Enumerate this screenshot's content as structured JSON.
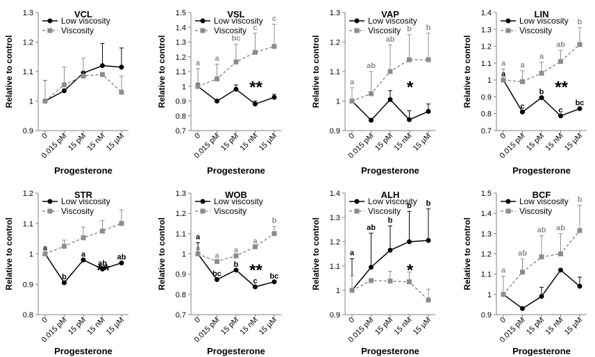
{
  "chart_data": [
    {
      "type": "line",
      "title": "VCL",
      "ylabel": "Relative to control",
      "xlabel": "Progesterone",
      "categories": [
        "0",
        "0.015 pM",
        "15 pM",
        "15 nM",
        "15 µM"
      ],
      "ylim": [
        0.9,
        1.3
      ],
      "yticks": [
        "0.9",
        "1",
        "1.1",
        "1.2",
        "1.3"
      ],
      "legend_position": "top-left",
      "significance": "",
      "series": [
        {
          "name": "Low viscosity",
          "style": "solid",
          "color": "#000000",
          "values": [
            1.0,
            1.035,
            1.095,
            1.12,
            1.115
          ],
          "errors": [
            0.07,
            0.0,
            0.0,
            0.075,
            0.065
          ],
          "letters": [
            "",
            "",
            "",
            "",
            ""
          ]
        },
        {
          "name": "Viscosity",
          "style": "dashed",
          "color": "#8c8c8c",
          "values": [
            1.0,
            1.055,
            1.085,
            1.09,
            1.03
          ],
          "errors": [
            0.07,
            0.06,
            0.06,
            0.0,
            0.055
          ],
          "letters": [
            "",
            "",
            "",
            "",
            ""
          ]
        }
      ]
    },
    {
      "type": "line",
      "title": "VSL",
      "ylabel": "Relative to control",
      "xlabel": "Progesterone",
      "categories": [
        "0",
        "0.015 pM",
        "15 pM",
        "15 nM",
        "15 µM"
      ],
      "ylim": [
        0.7,
        1.5
      ],
      "yticks": [
        "0.7",
        "0.8",
        "0.9",
        "1",
        "1.1",
        "1.2",
        "1.3",
        "1.4",
        "1.5"
      ],
      "legend_position": "top-left",
      "significance": "**",
      "series": [
        {
          "name": "Low viscosity",
          "style": "solid",
          "color": "#000000",
          "values": [
            1.0,
            0.9,
            0.98,
            0.88,
            0.925
          ],
          "errors": [
            0.02,
            0.0,
            0.03,
            0.02,
            0.02
          ],
          "letters": [
            "",
            "",
            "",
            "",
            ""
          ]
        },
        {
          "name": "Viscosity",
          "style": "dashed",
          "color": "#8c8c8c",
          "values": [
            1.0,
            1.05,
            1.165,
            1.23,
            1.27
          ],
          "errors": [
            0.12,
            0.1,
            0.12,
            0.13,
            0.15
          ],
          "letters": [
            "a",
            "a",
            "bc",
            "c",
            "c"
          ]
        }
      ]
    },
    {
      "type": "line",
      "title": "VAP",
      "ylabel": "Relative to control",
      "xlabel": "Progesterone",
      "categories": [
        "0",
        "0.015 pM",
        "15 pM",
        "15 nM",
        "15 µM"
      ],
      "ylim": [
        0.9,
        1.3
      ],
      "yticks": [
        "0.9",
        "1",
        "1.1",
        "1.2",
        "1.3"
      ],
      "legend_position": "top-left",
      "significance": "*",
      "series": [
        {
          "name": "Low viscosity",
          "style": "solid",
          "color": "#000000",
          "values": [
            1.0,
            0.935,
            1.005,
            0.937,
            0.965
          ],
          "errors": [
            0.0,
            0.0,
            0.03,
            0.03,
            0.025
          ],
          "letters": [
            "",
            "",
            "",
            "",
            ""
          ]
        },
        {
          "name": "Viscosity",
          "style": "dashed",
          "color": "#8c8c8c",
          "values": [
            1.0,
            1.025,
            1.1,
            1.14,
            1.14
          ],
          "errors": [
            0.045,
            0.075,
            0.09,
            0.085,
            0.09
          ],
          "letters": [
            "a",
            "ab",
            "ab",
            "b",
            "b"
          ]
        }
      ]
    },
    {
      "type": "line",
      "title": "LIN",
      "ylabel": "Relative to control",
      "xlabel": "Progesterone",
      "categories": [
        "0",
        "0.015 pM",
        "15 pM",
        "15 nM",
        "15 µM"
      ],
      "ylim": [
        0.7,
        1.4
      ],
      "yticks": [
        "0.7",
        "0.8",
        "0.9",
        "1",
        "1.1",
        "1.2",
        "1.3",
        "1.4"
      ],
      "legend_position": "top-left",
      "significance": "**",
      "series": [
        {
          "name": "Low viscosity",
          "style": "solid",
          "color": "#000000",
          "values": [
            1.0,
            0.81,
            0.895,
            0.787,
            0.83
          ],
          "errors": [
            0.0,
            0.0,
            0.0,
            0.0,
            0.0
          ],
          "letters": [
            "a",
            "c",
            "b",
            "c",
            "bc"
          ]
        },
        {
          "name": "Viscosity",
          "style": "dashed",
          "color": "#8c8c8c",
          "values": [
            1.0,
            0.99,
            1.04,
            1.11,
            1.21
          ],
          "errors": [
            0.065,
            0.065,
            0.065,
            0.065,
            0.1
          ],
          "letters": [
            "a",
            "a",
            "a",
            "ab",
            "b"
          ]
        }
      ]
    },
    {
      "type": "line",
      "title": "STR",
      "ylabel": "Relative to control",
      "xlabel": "Progesterone",
      "categories": [
        "0",
        "0.015 pM",
        "15 pM",
        "15 nM",
        "15 µM"
      ],
      "ylim": [
        0.8,
        1.2
      ],
      "yticks": [
        "0.8",
        "0.9",
        "1",
        "1.1",
        "1.2"
      ],
      "legend_position": "top-left",
      "significance": "**",
      "series": [
        {
          "name": "Low viscosity",
          "style": "solid",
          "color": "#000000",
          "values": [
            1.0,
            0.905,
            0.98,
            0.95,
            0.97
          ],
          "errors": [
            0.0,
            0.0,
            0.0,
            0.0,
            0.0
          ],
          "letters": [
            "a",
            "b",
            "a",
            "ab",
            "ab"
          ]
        },
        {
          "name": "Viscosity",
          "style": "dashed",
          "color": "#8c8c8c",
          "values": [
            1.0,
            1.025,
            1.053,
            1.075,
            1.1
          ],
          "errors": [
            0.02,
            0.02,
            0.035,
            0.035,
            0.045
          ],
          "letters": [
            "",
            "",
            "",
            "",
            ""
          ]
        }
      ]
    },
    {
      "type": "line",
      "title": "WOB",
      "ylabel": "Relative to control",
      "xlabel": "Progesterone",
      "categories": [
        "0",
        "0.015 pM",
        "15 pM",
        "15 nM",
        "15 µM"
      ],
      "ylim": [
        0.7,
        1.3
      ],
      "yticks": [
        "0.7",
        "0.8",
        "0.9",
        "1",
        "1.1",
        "1.2",
        "1.3"
      ],
      "legend_position": "top-left",
      "significance": "**",
      "series": [
        {
          "name": "Low viscosity",
          "style": "solid",
          "color": "#000000",
          "values": [
            1.0,
            0.873,
            0.92,
            0.837,
            0.862
          ],
          "errors": [
            0.055,
            0.0,
            0.0,
            0.0,
            0.0
          ],
          "letters": [
            "a",
            "bc",
            "b",
            "c",
            "bc"
          ]
        },
        {
          "name": "Viscosity",
          "style": "dashed",
          "color": "#8c8c8c",
          "values": [
            1.0,
            0.962,
            0.99,
            1.035,
            1.1
          ],
          "errors": [
            0.0,
            0.0,
            0.0,
            0.0,
            0.035
          ],
          "letters": [
            "a",
            "a",
            "a",
            "a",
            "b"
          ]
        }
      ]
    },
    {
      "type": "line",
      "title": "ALH",
      "ylabel": "Relative to control",
      "xlabel": "Progesterone",
      "categories": [
        "0",
        "0.015 pM",
        "15 pM",
        "15 nM",
        "15 µM"
      ],
      "ylim": [
        0.9,
        1.4
      ],
      "yticks": [
        "0.9",
        "1",
        "1.1",
        "1.2",
        "1.3",
        "1.4"
      ],
      "legend_position": "top-left",
      "significance": "*",
      "series": [
        {
          "name": "Low viscosity",
          "style": "solid",
          "color": "#000000",
          "values": [
            1.0,
            1.095,
            1.165,
            1.2,
            1.205
          ],
          "errors": [
            0.13,
            0.14,
            0.1,
            0.125,
            0.13
          ],
          "letters": [
            "a",
            "ab",
            "b",
            "b",
            "b"
          ]
        },
        {
          "name": "Viscosity",
          "style": "dashed",
          "color": "#8c8c8c",
          "values": [
            1.0,
            1.04,
            1.038,
            1.035,
            0.96
          ],
          "errors": [
            0.06,
            0.0,
            0.04,
            0.04,
            0.045
          ],
          "letters": [
            "",
            "",
            "",
            "",
            ""
          ]
        }
      ]
    },
    {
      "type": "line",
      "title": "BCF",
      "ylabel": "Relative to control",
      "xlabel": "Progesterone",
      "categories": [
        "0",
        "0.015 pM",
        "15 pM",
        "15 nM",
        "15 µM"
      ],
      "ylim": [
        0.9,
        1.5
      ],
      "yticks": [
        "0.9",
        "1",
        "1.1",
        "1.2",
        "1.3",
        "1.4",
        "1.5"
      ],
      "legend_position": "top-left",
      "significance": "",
      "series": [
        {
          "name": "Low viscosity",
          "style": "solid",
          "color": "#000000",
          "values": [
            1.0,
            0.93,
            0.99,
            1.12,
            1.04
          ],
          "errors": [
            0.0,
            0.0,
            0.045,
            0.0,
            0.045
          ],
          "letters": [
            "",
            "",
            "",
            "",
            ""
          ]
        },
        {
          "name": "Viscosity",
          "style": "dashed",
          "color": "#8c8c8c",
          "values": [
            1.0,
            1.11,
            1.185,
            1.2,
            1.315
          ],
          "errors": [
            0.09,
            0.065,
            0.105,
            0.1,
            0.125
          ],
          "letters": [
            "a",
            "ab",
            "ab",
            "ab",
            "b"
          ]
        }
      ]
    }
  ]
}
